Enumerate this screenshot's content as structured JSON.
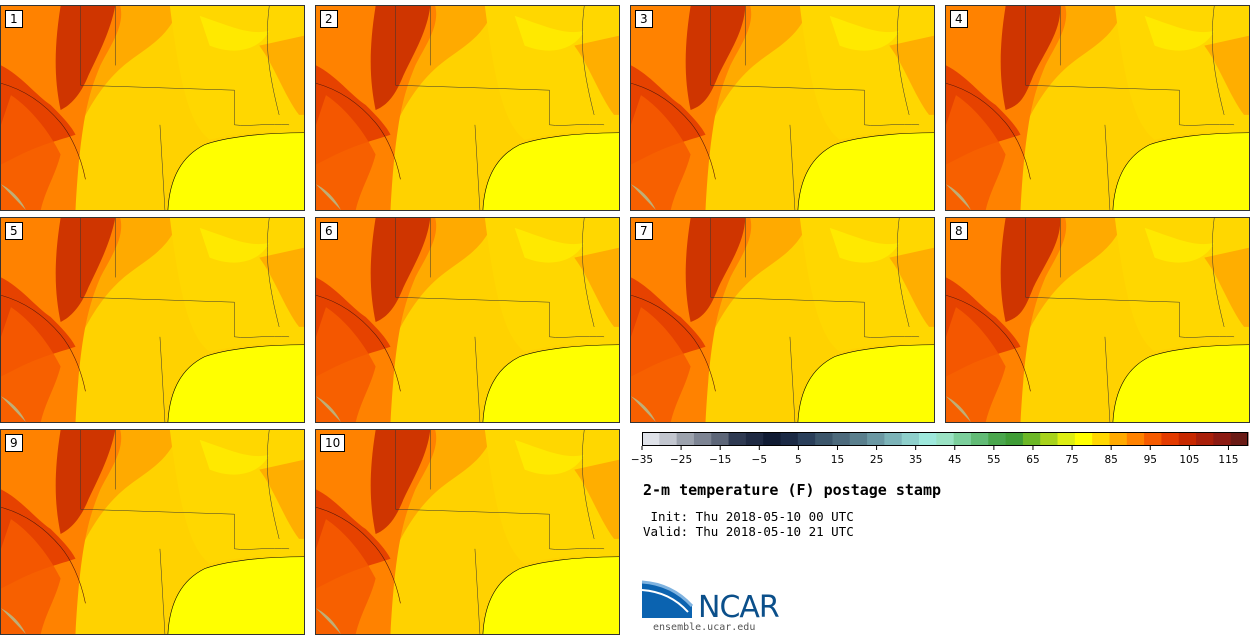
{
  "members": [
    "1",
    "2",
    "3",
    "4",
    "5",
    "6",
    "7",
    "8",
    "9",
    "10"
  ],
  "chart_data": {
    "type": "heatmap",
    "title": "2-m temperature (F) postage stamp",
    "variable": "2-m temperature",
    "units": "F",
    "colorbar": {
      "min": -35,
      "max": 120,
      "step": 5,
      "tick_labels": [
        "−35",
        "−25",
        "−15",
        "−5",
        "5",
        "15",
        "25",
        "35",
        "45",
        "55",
        "65",
        "75",
        "85",
        "95",
        "105",
        "115"
      ],
      "colors": [
        "#dfe2e9",
        "#c2c6cf",
        "#9ca2ad",
        "#7d8493",
        "#5d6678",
        "#2f3a52",
        "#1f2a43",
        "#101b33",
        "#1b2a45",
        "#2a3f5a",
        "#3c566b",
        "#4d6a7c",
        "#5a7f8d",
        "#6b98a3",
        "#7cb3b8",
        "#8ecfcb",
        "#9ee8dc",
        "#9ae2c4",
        "#7ccf9c",
        "#62bb76",
        "#4aa64d",
        "#3f9c36",
        "#6cb727",
        "#a7d21c",
        "#ddee13",
        "#ffff00",
        "#ffd700",
        "#ffaa00",
        "#ff8200",
        "#f65b00",
        "#e33b00",
        "#c72800",
        "#a91f0a",
        "#8c1a12",
        "#6a1a15"
      ]
    },
    "init_text": " Init: Thu 2018-05-10 00 UTC",
    "valid_text": "Valid: Thu 2018-05-10 21 UTC"
  },
  "logo": {
    "name": "NCAR",
    "url": "ensemble.ucar.edu"
  }
}
